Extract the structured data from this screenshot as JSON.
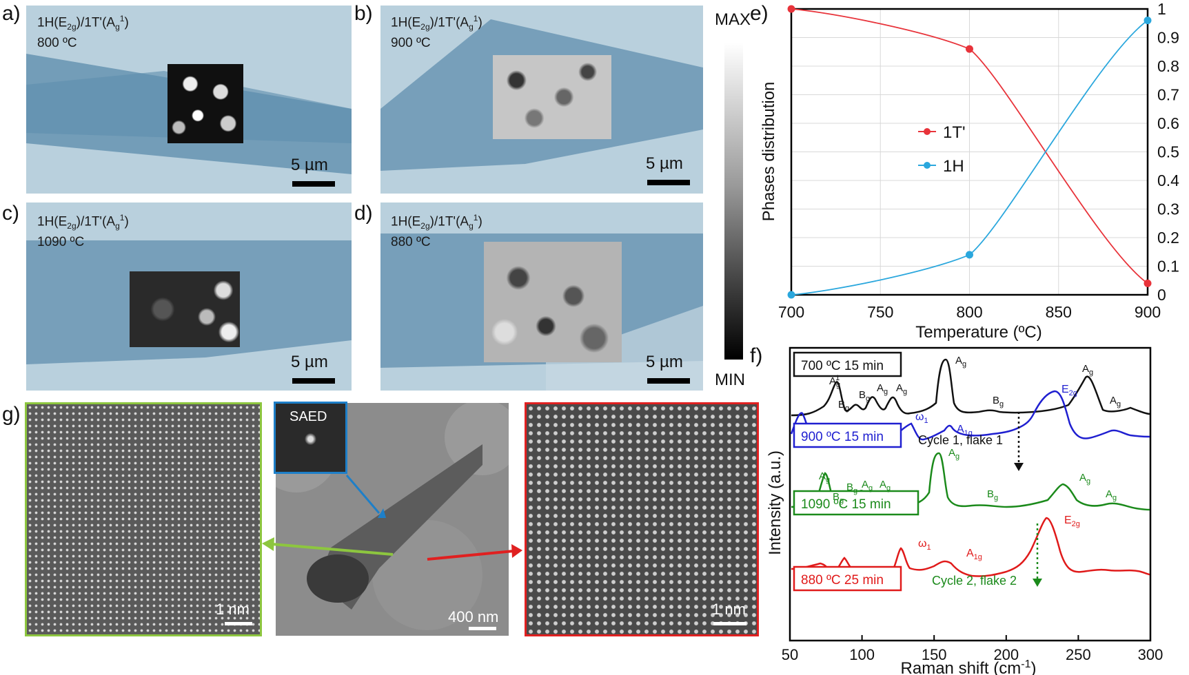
{
  "panel_labels": {
    "a": "a)",
    "b": "b)",
    "c": "c)",
    "d": "d)",
    "e": "e)",
    "f": "f)",
    "g": "g)"
  },
  "maps": {
    "label_prefix": "1H(E",
    "label_sub": "2g",
    "label_mid": ")/1T'(A",
    "label_sub2": "g",
    "label_sup": "1",
    "label_end": ")",
    "scale": "5 µm",
    "temps": {
      "a": "800 ºC",
      "b": "900 ºC",
      "c": "1090 ºC",
      "d": "880 ºC"
    }
  },
  "colorbar": {
    "max": "MAX",
    "min": "MIN"
  },
  "chart_data": [
    {
      "type": "line",
      "panel": "e",
      "xlabel": "Temperature (ºC)",
      "ylabel": "Phases distribution",
      "xlim": [
        700,
        900
      ],
      "ylim": [
        0,
        1
      ],
      "x_ticks": [
        "700",
        "750",
        "800",
        "850",
        "900"
      ],
      "y_ticks": [
        "0",
        "0.1",
        "0.2",
        "0.3",
        "0.4",
        "0.5",
        "0.6",
        "0.7",
        "0.8",
        "0.9",
        "1"
      ],
      "grid": true,
      "legend": "center-left",
      "series": [
        {
          "name": "1T'",
          "color": "#e8333a",
          "points": [
            [
              700,
              1.0
            ],
            [
              800,
              0.86
            ],
            [
              900,
              0.04
            ]
          ]
        },
        {
          "name": "1H",
          "color": "#2aa7dd",
          "points": [
            [
              700,
              0.0
            ],
            [
              800,
              0.14
            ],
            [
              900,
              0.96
            ]
          ]
        }
      ]
    },
    {
      "type": "line",
      "panel": "f",
      "xlabel": "Raman shift (cm-1)",
      "ylabel": "Intensity (a.u.)",
      "xlim": [
        50,
        300
      ],
      "x_ticks": [
        "50",
        "100",
        "150",
        "200",
        "250",
        "300"
      ],
      "series": [
        {
          "name": "700 ºC 15 min",
          "color": "#111111"
        },
        {
          "name": "900 ºC 15 min",
          "color": "#1f1fd0"
        },
        {
          "name": "1090 ºC 15 min",
          "color": "#1b8a1b"
        },
        {
          "name": "880 ºC 25 min",
          "color": "#e01a1a"
        }
      ],
      "annotations": [
        "Cycle 1, flake 1",
        "Cycle 2, flake 2"
      ]
    }
  ],
  "tem": {
    "saed": "SAED",
    "scale_left": "1 nm",
    "scale_center": "400 nm",
    "scale_right": "1 nm"
  }
}
